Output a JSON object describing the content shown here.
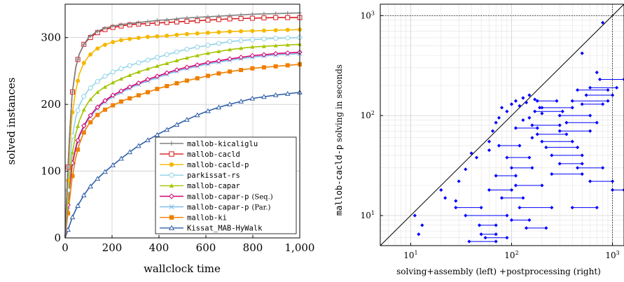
{
  "chart_data": [
    {
      "type": "line",
      "xlabel": "wallclock time",
      "ylabel": "solved instances",
      "xlim": [
        0,
        1000
      ],
      "ylim": [
        0,
        350
      ],
      "x_ticks": [
        0,
        200,
        400,
        600,
        800,
        1000
      ],
      "x_tick_labels": [
        "0",
        "200",
        "400",
        "600",
        "800",
        "1,000"
      ],
      "y_ticks": [
        0,
        100,
        200,
        300
      ],
      "y_tick_labels": [
        "0",
        "100",
        "200",
        "300"
      ],
      "grid": true,
      "legend_position": "bottom-right",
      "series": [
        {
          "name": "mallob-kicaliglu",
          "legend_suffix": "",
          "color": "#808080",
          "marker": "plus",
          "x": [
            0,
            10,
            20,
            30,
            45,
            60,
            80,
            100,
            130,
            160,
            200,
            250,
            300,
            350,
            400,
            450,
            500,
            550,
            600,
            650,
            700,
            800,
            900,
            1000
          ],
          "y": [
            0,
            90,
            160,
            215,
            255,
            275,
            290,
            300,
            308,
            313,
            317,
            320,
            322,
            324,
            326,
            327,
            329,
            330,
            331,
            332,
            333,
            335,
            336,
            337
          ]
        },
        {
          "name": "mallob-cacld",
          "legend_suffix": "",
          "color": "#d7191c",
          "marker": "square-open",
          "x": [
            0,
            10,
            20,
            30,
            45,
            60,
            80,
            100,
            130,
            160,
            200,
            250,
            300,
            350,
            400,
            450,
            500,
            550,
            600,
            650,
            700,
            800,
            900,
            1000
          ],
          "y": [
            0,
            90,
            160,
            215,
            255,
            275,
            290,
            298,
            306,
            311,
            315,
            318,
            320,
            321,
            322,
            323,
            324,
            325,
            326,
            327,
            328,
            329,
            330,
            330
          ]
        },
        {
          "name": "mallob-cacld-p",
          "legend_suffix": "",
          "color": "#f5b800",
          "marker": "circle",
          "x": [
            0,
            10,
            20,
            30,
            45,
            60,
            80,
            100,
            130,
            160,
            200,
            250,
            300,
            350,
            400,
            450,
            500,
            550,
            600,
            650,
            700,
            800,
            900,
            1000
          ],
          "y": [
            0,
            70,
            140,
            185,
            220,
            245,
            262,
            272,
            282,
            288,
            293,
            297,
            299,
            301,
            302,
            303,
            305,
            306,
            307,
            308,
            309,
            310,
            311,
            312
          ]
        },
        {
          "name": "parkissat-rs",
          "legend_suffix": "",
          "color": "#8fd3e8",
          "marker": "circle-open",
          "x": [
            0,
            10,
            20,
            30,
            45,
            60,
            80,
            100,
            130,
            160,
            200,
            250,
            300,
            350,
            400,
            450,
            500,
            550,
            600,
            650,
            700,
            800,
            900,
            1000
          ],
          "y": [
            0,
            60,
            110,
            150,
            180,
            198,
            212,
            222,
            232,
            240,
            248,
            255,
            261,
            266,
            271,
            276,
            281,
            285,
            288,
            291,
            294,
            297,
            299,
            300
          ]
        },
        {
          "name": "mallob-capar",
          "legend_suffix": "",
          "color": "#a6c400",
          "marker": "triangle",
          "x": [
            0,
            10,
            20,
            30,
            45,
            60,
            80,
            100,
            130,
            160,
            200,
            250,
            300,
            350,
            400,
            450,
            500,
            550,
            600,
            650,
            700,
            800,
            900,
            1000
          ],
          "y": [
            0,
            45,
            90,
            125,
            155,
            175,
            192,
            204,
            216,
            224,
            232,
            240,
            247,
            253,
            258,
            263,
            268,
            272,
            276,
            279,
            282,
            286,
            288,
            290
          ]
        },
        {
          "name": "mallob-capar-p",
          "legend_suffix": "(Seq.)",
          "color": "#d6006f",
          "marker": "diamond-open",
          "x": [
            0,
            10,
            20,
            30,
            45,
            60,
            80,
            100,
            130,
            160,
            200,
            250,
            300,
            350,
            400,
            450,
            500,
            550,
            600,
            650,
            700,
            800,
            900,
            1000
          ],
          "y": [
            0,
            40,
            80,
            110,
            135,
            153,
            168,
            180,
            193,
            203,
            213,
            222,
            230,
            237,
            243,
            249,
            254,
            258,
            262,
            265,
            268,
            273,
            276,
            278
          ]
        },
        {
          "name": "mallob-capar-p",
          "legend_suffix": "(Par.)",
          "color": "#7ab8e8",
          "marker": "cross",
          "x": [
            0,
            10,
            20,
            30,
            45,
            60,
            80,
            100,
            130,
            160,
            200,
            250,
            300,
            350,
            400,
            450,
            500,
            550,
            600,
            650,
            700,
            800,
            900,
            1000
          ],
          "y": [
            0,
            38,
            78,
            108,
            133,
            151,
            166,
            178,
            191,
            201,
            211,
            220,
            228,
            235,
            241,
            247,
            252,
            256,
            260,
            263,
            266,
            271,
            274,
            276
          ]
        },
        {
          "name": "mallob-ki",
          "legend_suffix": "",
          "color": "#f07f00",
          "marker": "square",
          "x": [
            0,
            10,
            20,
            30,
            45,
            60,
            80,
            100,
            130,
            160,
            200,
            250,
            300,
            350,
            400,
            450,
            500,
            550,
            600,
            650,
            700,
            800,
            900,
            1000
          ],
          "y": [
            0,
            30,
            60,
            90,
            120,
            140,
            158,
            170,
            182,
            190,
            198,
            206,
            212,
            218,
            224,
            229,
            234,
            238,
            242,
            246,
            249,
            254,
            257,
            260
          ]
        },
        {
          "name": "Kissat_MAB-HyWalk",
          "legend_suffix": "",
          "color": "#2f5fa8",
          "marker": "triangle-open",
          "x": [
            0,
            10,
            20,
            30,
            45,
            60,
            80,
            100,
            130,
            160,
            200,
            250,
            300,
            350,
            400,
            450,
            500,
            550,
            600,
            650,
            700,
            800,
            900,
            1000
          ],
          "y": [
            0,
            10,
            20,
            30,
            42,
            52,
            64,
            74,
            86,
            96,
            108,
            122,
            135,
            146,
            156,
            165,
            174,
            182,
            189,
            195,
            200,
            209,
            214,
            218
          ]
        }
      ]
    },
    {
      "type": "scatter",
      "xlabel": "solving+assembly (left) +postprocessing (right)",
      "ylabel": "mallob-cacld-p solving in seconds",
      "ylabel_mono_part": "mallob-cacld-p",
      "ylabel_text_part": " solving in seconds",
      "x_scale": "log",
      "y_scale": "log",
      "xlim": [
        5,
        1300
      ],
      "ylim": [
        5,
        1300
      ],
      "x_tick_labels": [
        "10^1",
        "10^2",
        "10^3"
      ],
      "y_tick_labels": [
        "10^1",
        "10^2",
        "10^3"
      ],
      "reference_lines": [
        "diagonal",
        "x=1000",
        "y=1000"
      ],
      "grid": true,
      "color": "#0000ff",
      "points": [
        {
          "x": 11,
          "x2": 11,
          "y": 10
        },
        {
          "x": 13,
          "x2": 13,
          "y": 8
        },
        {
          "x": 12,
          "x2": 12,
          "y": 6.5
        },
        {
          "x": 20,
          "x2": 20,
          "y": 18
        },
        {
          "x": 22,
          "x2": 22,
          "y": 15
        },
        {
          "x": 28,
          "x2": 28,
          "y": 14
        },
        {
          "x": 28,
          "x2": 50,
          "y": 12
        },
        {
          "x": 35,
          "x2": 90,
          "y": 10
        },
        {
          "x": 30,
          "x2": 30,
          "y": 22
        },
        {
          "x": 35,
          "x2": 35,
          "y": 29
        },
        {
          "x": 40,
          "x2": 40,
          "y": 42
        },
        {
          "x": 45,
          "x2": 45,
          "y": 38
        },
        {
          "x": 48,
          "x2": 70,
          "y": 8
        },
        {
          "x": 50,
          "x2": 70,
          "y": 6.5
        },
        {
          "x": 38,
          "x2": 70,
          "y": 5.5
        },
        {
          "x": 55,
          "x2": 90,
          "y": 6
        },
        {
          "x": 60,
          "x2": 60,
          "y": 55
        },
        {
          "x": 65,
          "x2": 65,
          "y": 70
        },
        {
          "x": 70,
          "x2": 70,
          "y": 85
        },
        {
          "x": 75,
          "x2": 75,
          "y": 95
        },
        {
          "x": 80,
          "x2": 80,
          "y": 120
        },
        {
          "x": 90,
          "x2": 90,
          "y": 110
        },
        {
          "x": 100,
          "x2": 100,
          "y": 130
        },
        {
          "x": 110,
          "x2": 110,
          "y": 140
        },
        {
          "x": 120,
          "x2": 120,
          "y": 125
        },
        {
          "x": 130,
          "x2": 130,
          "y": 150
        },
        {
          "x": 140,
          "x2": 140,
          "y": 135
        },
        {
          "x": 150,
          "x2": 150,
          "y": 160
        },
        {
          "x": 170,
          "x2": 170,
          "y": 145
        },
        {
          "x": 60,
          "x2": 60,
          "y": 45
        },
        {
          "x": 75,
          "x2": 120,
          "y": 50
        },
        {
          "x": 90,
          "x2": 150,
          "y": 38
        },
        {
          "x": 100,
          "x2": 160,
          "y": 30
        },
        {
          "x": 70,
          "x2": 110,
          "y": 25
        },
        {
          "x": 110,
          "x2": 200,
          "y": 20
        },
        {
          "x": 60,
          "x2": 100,
          "y": 18
        },
        {
          "x": 80,
          "x2": 130,
          "y": 15
        },
        {
          "x": 120,
          "x2": 250,
          "y": 12
        },
        {
          "x": 100,
          "x2": 150,
          "y": 9
        },
        {
          "x": 140,
          "x2": 220,
          "y": 7.5
        },
        {
          "x": 150,
          "x2": 150,
          "y": 95
        },
        {
          "x": 160,
          "x2": 300,
          "y": 80
        },
        {
          "x": 180,
          "x2": 350,
          "y": 65
        },
        {
          "x": 200,
          "x2": 400,
          "y": 55
        },
        {
          "x": 220,
          "x2": 450,
          "y": 48
        },
        {
          "x": 250,
          "x2": 500,
          "y": 40
        },
        {
          "x": 170,
          "x2": 320,
          "y": 110
        },
        {
          "x": 200,
          "x2": 400,
          "y": 120
        },
        {
          "x": 300,
          "x2": 600,
          "y": 100
        },
        {
          "x": 350,
          "x2": 700,
          "y": 85
        },
        {
          "x": 300,
          "x2": 600,
          "y": 70
        },
        {
          "x": 400,
          "x2": 900,
          "y": 140
        },
        {
          "x": 450,
          "x2": 900,
          "y": 180
        },
        {
          "x": 500,
          "x2": 500,
          "y": 420
        },
        {
          "x": 800,
          "x2": 800,
          "y": 850
        },
        {
          "x": 700,
          "x2": 700,
          "y": 270
        },
        {
          "x": 750,
          "x2": 1300,
          "y": 230
        },
        {
          "x": 600,
          "x2": 1100,
          "y": 190
        },
        {
          "x": 550,
          "x2": 1000,
          "y": 160
        },
        {
          "x": 500,
          "x2": 800,
          "y": 130
        },
        {
          "x": 450,
          "x2": 800,
          "y": 30
        },
        {
          "x": 600,
          "x2": 1000,
          "y": 22
        },
        {
          "x": 400,
          "x2": 700,
          "y": 12
        },
        {
          "x": 1000,
          "x2": 1300,
          "y": 18
        },
        {
          "x": 250,
          "x2": 500,
          "y": 26
        },
        {
          "x": 300,
          "x2": 500,
          "y": 33
        },
        {
          "x": 180,
          "x2": 280,
          "y": 140
        },
        {
          "x": 190,
          "x2": 190,
          "y": 120
        },
        {
          "x": 200,
          "x2": 200,
          "y": 105
        },
        {
          "x": 130,
          "x2": 130,
          "y": 90
        },
        {
          "x": 110,
          "x2": 180,
          "y": 75
        },
        {
          "x": 160,
          "x2": 160,
          "y": 60
        }
      ]
    }
  ]
}
